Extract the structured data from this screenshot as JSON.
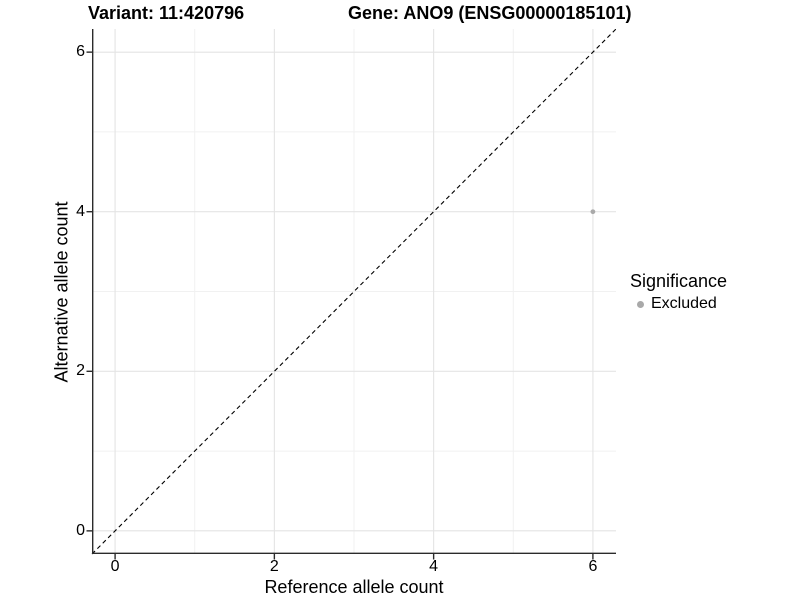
{
  "header": {
    "variant_title": "Variant: 11:420796",
    "gene_title": "Gene: ANO9 (ENSG00000185101)"
  },
  "chart_data": {
    "type": "scatter",
    "xlabel": "Reference allele count",
    "ylabel": "Alternative allele count",
    "xlim": [
      -0.29,
      6.29
    ],
    "ylim": [
      -0.29,
      6.29
    ],
    "xticks": [
      0,
      2,
      4,
      6
    ],
    "yticks": [
      0,
      2,
      4,
      6
    ],
    "xticks_minor": [
      1,
      3,
      5
    ],
    "yticks_minor": [
      1,
      3,
      5
    ],
    "grid": "major+minor",
    "points": [
      {
        "x": 6,
        "y": 4,
        "significance": "Excluded"
      }
    ],
    "identity_line": {
      "style": "dashed",
      "slope": 1,
      "intercept": 0
    },
    "legend": {
      "title": "Significance",
      "position": "right",
      "items": [
        {
          "label": "Excluded",
          "color": "#a9a9a9"
        }
      ]
    },
    "colors": {
      "point": "#a9a9a9",
      "grid_major": "#e4e4e4",
      "grid_minor": "#f1f1f1",
      "axis_line": "#2b2b2b",
      "identity_line": "#000000",
      "text": "#000000",
      "background": "#ffffff"
    }
  }
}
